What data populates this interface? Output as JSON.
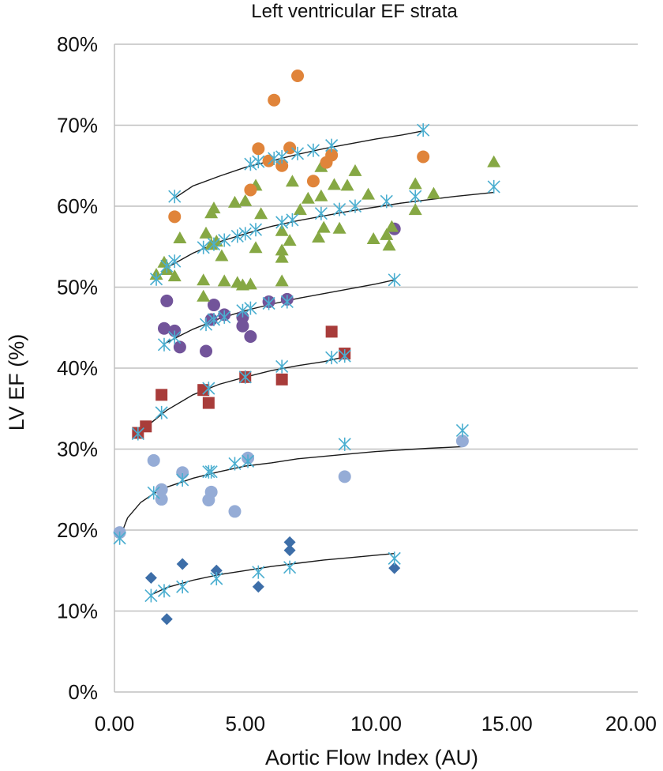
{
  "chart_data": {
    "type": "scatter",
    "title": "Left ventricular EF strata",
    "xlabel": "Aortic Flow Index (AU)",
    "ylabel": "LV EF (%)",
    "xlim": [
      0,
      20
    ],
    "ylim": [
      0,
      80
    ],
    "x_ticks": [
      "0.00",
      "5.00",
      "10.00",
      "15.00",
      "20.00"
    ],
    "y_ticks": [
      "0%",
      "10%",
      "20%",
      "30%",
      "40%",
      "50%",
      "60%",
      "70%",
      "80%"
    ],
    "grid": "horizontal",
    "legend": "none",
    "colors": {
      "dark_blue": "#3d6ea8",
      "light_blue": "#95acd6",
      "red": "#a83c3a",
      "purple": "#72549a",
      "green": "#86a844",
      "orange": "#e0843a",
      "fit_marker": "#4aaed0",
      "trendline": "#1a1a1a",
      "gridline": "#c0c0c0"
    },
    "series": [
      {
        "marker": "diamond",
        "color": "#3d6ea8",
        "points": [
          [
            1.4,
            14.1
          ],
          [
            2.0,
            9.0
          ],
          [
            2.6,
            15.8
          ],
          [
            3.9,
            15.0
          ],
          [
            5.5,
            13.0
          ],
          [
            6.7,
            18.5
          ],
          [
            6.7,
            17.5
          ],
          [
            10.7,
            15.3
          ]
        ]
      },
      {
        "marker": "asterisk",
        "color": "#4aaed0",
        "points": [
          [
            1.4,
            11.9
          ],
          [
            1.9,
            12.5
          ],
          [
            2.6,
            13.0
          ],
          [
            3.9,
            14.0
          ],
          [
            5.5,
            14.8
          ],
          [
            6.7,
            15.4
          ],
          [
            10.7,
            16.5
          ]
        ]
      },
      {
        "marker": "circle",
        "color": "#95acd6",
        "points": [
          [
            0.2,
            19.7
          ],
          [
            1.5,
            28.6
          ],
          [
            1.8,
            25.0
          ],
          [
            1.8,
            23.8
          ],
          [
            2.6,
            27.1
          ],
          [
            3.6,
            23.7
          ],
          [
            3.7,
            24.7
          ],
          [
            4.6,
            22.3
          ],
          [
            5.1,
            28.9
          ],
          [
            8.8,
            26.6
          ],
          [
            13.3,
            31.0
          ]
        ]
      },
      {
        "marker": "asterisk",
        "color": "#4aaed0",
        "points": [
          [
            0.2,
            19.0
          ],
          [
            1.5,
            24.6
          ],
          [
            2.6,
            26.2
          ],
          [
            3.6,
            27.2
          ],
          [
            3.7,
            27.2
          ],
          [
            4.6,
            28.2
          ],
          [
            5.1,
            28.5
          ],
          [
            8.8,
            30.6
          ],
          [
            13.3,
            32.3
          ]
        ]
      },
      {
        "marker": "square",
        "color": "#a83c3a",
        "points": [
          [
            0.9,
            32.0
          ],
          [
            1.2,
            32.8
          ],
          [
            1.8,
            36.7
          ],
          [
            3.4,
            37.3
          ],
          [
            3.6,
            35.7
          ],
          [
            5.0,
            38.9
          ],
          [
            6.4,
            38.6
          ],
          [
            8.3,
            44.5
          ],
          [
            8.8,
            41.8
          ]
        ]
      },
      {
        "marker": "asterisk",
        "color": "#4aaed0",
        "points": [
          [
            0.9,
            31.9
          ],
          [
            1.8,
            34.5
          ],
          [
            3.6,
            37.5
          ],
          [
            5.0,
            38.9
          ],
          [
            6.4,
            40.2
          ],
          [
            8.3,
            41.3
          ],
          [
            8.8,
            41.5
          ]
        ]
      },
      {
        "marker": "circle",
        "color": "#72549a",
        "points": [
          [
            1.9,
            44.9
          ],
          [
            2.0,
            48.3
          ],
          [
            2.3,
            44.6
          ],
          [
            2.5,
            42.6
          ],
          [
            3.5,
            42.1
          ],
          [
            3.7,
            46.0
          ],
          [
            3.8,
            47.8
          ],
          [
            4.2,
            46.6
          ],
          [
            4.9,
            46.3
          ],
          [
            4.9,
            45.2
          ],
          [
            5.2,
            43.9
          ],
          [
            5.9,
            48.2
          ],
          [
            6.6,
            48.5
          ],
          [
            10.7,
            57.2
          ]
        ]
      },
      {
        "marker": "asterisk",
        "color": "#4aaed0",
        "points": [
          [
            1.9,
            42.9
          ],
          [
            2.3,
            43.8
          ],
          [
            3.5,
            45.4
          ],
          [
            3.8,
            46.0
          ],
          [
            4.2,
            46.3
          ],
          [
            4.9,
            47.1
          ],
          [
            5.2,
            47.4
          ],
          [
            5.9,
            48.0
          ],
          [
            6.6,
            48.2
          ],
          [
            10.7,
            50.9
          ]
        ]
      },
      {
        "marker": "triangle",
        "color": "#86a844",
        "points": [
          [
            1.6,
            51.5
          ],
          [
            1.9,
            53.0
          ],
          [
            2.0,
            52.1
          ],
          [
            2.3,
            51.3
          ],
          [
            2.5,
            56.0
          ],
          [
            3.4,
            48.8
          ],
          [
            3.4,
            50.8
          ],
          [
            3.5,
            56.6
          ],
          [
            3.7,
            55.2
          ],
          [
            3.7,
            59.1
          ],
          [
            3.8,
            59.7
          ],
          [
            3.9,
            55.6
          ],
          [
            4.1,
            53.8
          ],
          [
            4.2,
            50.7
          ],
          [
            4.6,
            60.4
          ],
          [
            4.7,
            50.5
          ],
          [
            4.9,
            50.2
          ],
          [
            5.0,
            60.6
          ],
          [
            5.2,
            50.3
          ],
          [
            5.4,
            54.8
          ],
          [
            5.4,
            62.5
          ],
          [
            5.6,
            59.0
          ],
          [
            6.4,
            56.9
          ],
          [
            6.4,
            54.5
          ],
          [
            6.4,
            53.6
          ],
          [
            6.4,
            50.7
          ],
          [
            6.7,
            55.7
          ],
          [
            6.8,
            63.0
          ],
          [
            7.1,
            59.5
          ],
          [
            7.4,
            60.9
          ],
          [
            7.8,
            56.1
          ],
          [
            7.9,
            61.2
          ],
          [
            7.9,
            64.8
          ],
          [
            8.0,
            57.3
          ],
          [
            8.4,
            62.6
          ],
          [
            8.6,
            57.2
          ],
          [
            8.9,
            62.5
          ],
          [
            9.2,
            64.3
          ],
          [
            9.7,
            61.4
          ],
          [
            9.9,
            55.9
          ],
          [
            10.4,
            56.4
          ],
          [
            10.5,
            55.1
          ],
          [
            10.6,
            57.4
          ],
          [
            11.5,
            62.7
          ],
          [
            11.5,
            59.5
          ],
          [
            12.2,
            61.5
          ],
          [
            14.5,
            65.4
          ]
        ]
      },
      {
        "marker": "asterisk",
        "color": "#4aaed0",
        "points": [
          [
            1.6,
            51.0
          ],
          [
            2.0,
            52.6
          ],
          [
            2.3,
            53.2
          ],
          [
            3.4,
            54.9
          ],
          [
            3.8,
            55.3
          ],
          [
            4.2,
            55.8
          ],
          [
            4.7,
            56.3
          ],
          [
            5.0,
            56.6
          ],
          [
            5.4,
            57.1
          ],
          [
            6.4,
            58.0
          ],
          [
            6.8,
            58.3
          ],
          [
            7.9,
            59.1
          ],
          [
            8.6,
            59.6
          ],
          [
            9.2,
            60.0
          ],
          [
            10.4,
            60.6
          ],
          [
            11.5,
            61.2
          ],
          [
            14.5,
            62.4
          ]
        ]
      },
      {
        "marker": "circle",
        "color": "#e0843a",
        "points": [
          [
            2.3,
            58.7
          ],
          [
            5.2,
            62.0
          ],
          [
            5.5,
            67.1
          ],
          [
            5.9,
            65.6
          ],
          [
            6.1,
            73.1
          ],
          [
            6.4,
            65.0
          ],
          [
            6.7,
            67.2
          ],
          [
            7.0,
            76.1
          ],
          [
            7.6,
            63.1
          ],
          [
            8.1,
            65.4
          ],
          [
            8.3,
            66.3
          ],
          [
            11.8,
            66.1
          ]
        ]
      },
      {
        "marker": "asterisk",
        "color": "#4aaed0",
        "points": [
          [
            2.3,
            61.2
          ],
          [
            5.2,
            65.2
          ],
          [
            5.5,
            65.5
          ],
          [
            6.1,
            65.9
          ],
          [
            6.4,
            66.1
          ],
          [
            7.0,
            66.5
          ],
          [
            7.6,
            66.9
          ],
          [
            8.3,
            67.5
          ],
          [
            11.8,
            69.4
          ]
        ]
      }
    ],
    "trendlines": [
      {
        "points": [
          [
            1.4,
            12.0
          ],
          [
            2.0,
            12.9
          ],
          [
            3.0,
            13.8
          ],
          [
            4.0,
            14.5
          ],
          [
            5.0,
            15.0
          ],
          [
            6.0,
            15.5
          ],
          [
            7.0,
            15.9
          ],
          [
            8.0,
            16.3
          ],
          [
            9.0,
            16.6
          ],
          [
            10.0,
            16.9
          ],
          [
            10.7,
            17.1
          ]
        ]
      },
      {
        "points": [
          [
            0.2,
            19.0
          ],
          [
            0.5,
            21.5
          ],
          [
            1.0,
            23.4
          ],
          [
            1.5,
            24.5
          ],
          [
            2.0,
            25.3
          ],
          [
            3.0,
            26.4
          ],
          [
            4.0,
            27.2
          ],
          [
            5.0,
            27.9
          ],
          [
            6.0,
            28.3
          ],
          [
            7.0,
            28.8
          ],
          [
            8.0,
            29.1
          ],
          [
            9.0,
            29.4
          ],
          [
            10.0,
            29.7
          ],
          [
            11.0,
            29.9
          ],
          [
            12.0,
            30.1
          ],
          [
            13.3,
            30.3
          ]
        ]
      },
      {
        "points": [
          [
            0.9,
            31.9
          ],
          [
            1.5,
            33.5
          ],
          [
            2.0,
            34.8
          ],
          [
            3.0,
            36.7
          ],
          [
            4.0,
            38.0
          ],
          [
            5.0,
            38.9
          ],
          [
            6.0,
            39.7
          ],
          [
            7.0,
            40.3
          ],
          [
            8.0,
            40.8
          ],
          [
            8.8,
            41.4
          ]
        ]
      },
      {
        "points": [
          [
            1.9,
            43.0
          ],
          [
            2.5,
            44.0
          ],
          [
            3.0,
            44.8
          ],
          [
            4.0,
            46.1
          ],
          [
            5.0,
            47.1
          ],
          [
            6.0,
            47.9
          ],
          [
            7.0,
            48.6
          ],
          [
            8.0,
            49.2
          ],
          [
            9.0,
            49.8
          ],
          [
            10.0,
            50.4
          ],
          [
            10.7,
            50.9
          ]
        ]
      },
      {
        "points": [
          [
            1.6,
            51.0
          ],
          [
            2.0,
            52.4
          ],
          [
            3.0,
            54.2
          ],
          [
            4.0,
            55.6
          ],
          [
            5.0,
            56.6
          ],
          [
            6.0,
            57.5
          ],
          [
            7.0,
            58.2
          ],
          [
            8.0,
            58.8
          ],
          [
            9.0,
            59.4
          ],
          [
            10.0,
            59.9
          ],
          [
            11.0,
            60.4
          ],
          [
            12.0,
            60.8
          ],
          [
            13.0,
            61.2
          ],
          [
            14.5,
            61.7
          ]
        ]
      },
      {
        "points": [
          [
            2.3,
            61.0
          ],
          [
            3.0,
            62.5
          ],
          [
            4.0,
            63.7
          ],
          [
            5.0,
            64.8
          ],
          [
            6.0,
            65.6
          ],
          [
            7.0,
            66.4
          ],
          [
            8.0,
            67.1
          ],
          [
            9.0,
            67.7
          ],
          [
            10.0,
            68.3
          ],
          [
            11.0,
            68.8
          ],
          [
            11.8,
            69.3
          ]
        ]
      }
    ]
  }
}
